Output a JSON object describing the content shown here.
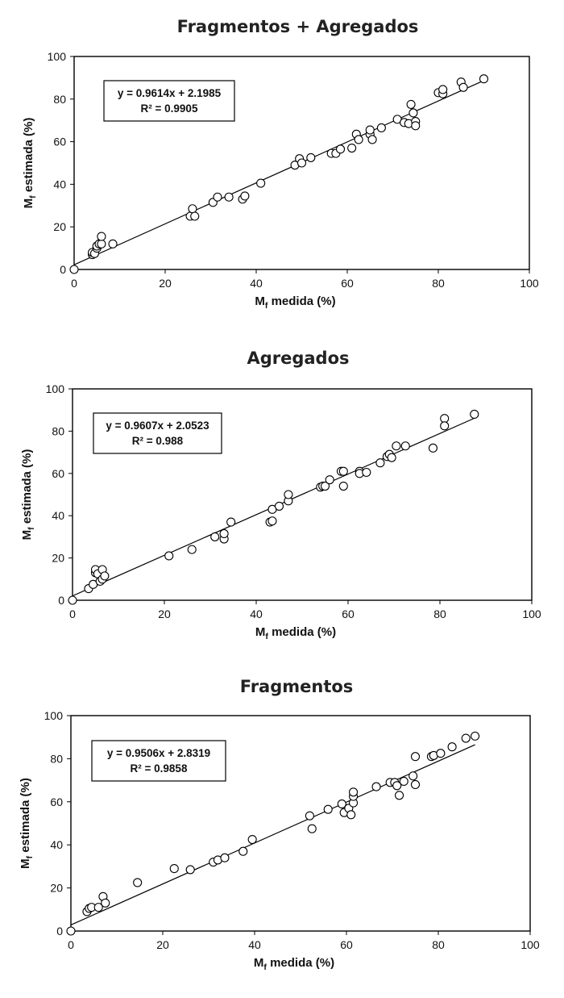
{
  "chart_data": [
    {
      "type": "scatter",
      "title": "Fragmentos + Agregados",
      "xlabel": "M",
      "xlabel_sub": "f",
      "xlabel_rest": " medida (%)",
      "ylabel": "M",
      "ylabel_sub": "f",
      "ylabel_rest": " estimada (%)",
      "xlim": [
        0,
        100
      ],
      "ylim": [
        0,
        100
      ],
      "x_ticks": [
        0,
        20,
        40,
        60,
        80,
        100
      ],
      "y_ticks": [
        0,
        20,
        40,
        60,
        80,
        100
      ],
      "equation": "y = 0.9614x + 2.1985",
      "r2": "R² = 0.9905",
      "fit": {
        "slope": 0.9614,
        "intercept": 2.1985,
        "x_range": [
          0,
          90
        ]
      },
      "points": [
        [
          0,
          0
        ],
        [
          4,
          7
        ],
        [
          4,
          8
        ],
        [
          4.5,
          7.5
        ],
        [
          5,
          10
        ],
        [
          5,
          11
        ],
        [
          5.5,
          12
        ],
        [
          6,
          12
        ],
        [
          6,
          15.5
        ],
        [
          8.5,
          12
        ],
        [
          25.5,
          25
        ],
        [
          26,
          28.5
        ],
        [
          26.5,
          25
        ],
        [
          30.5,
          31.5
        ],
        [
          31.5,
          34
        ],
        [
          34,
          34
        ],
        [
          37,
          33
        ],
        [
          37.5,
          34.5
        ],
        [
          41,
          40.5
        ],
        [
          48.5,
          49
        ],
        [
          49.5,
          52
        ],
        [
          50,
          50
        ],
        [
          52,
          52.5
        ],
        [
          56.5,
          54.5
        ],
        [
          57.5,
          54.5
        ],
        [
          58.5,
          56.5
        ],
        [
          61,
          57
        ],
        [
          62,
          63.5
        ],
        [
          62.5,
          61
        ],
        [
          65,
          63.5
        ],
        [
          65,
          65.5
        ],
        [
          65.5,
          61
        ],
        [
          67.5,
          66.5
        ],
        [
          71,
          70.5
        ],
        [
          72.5,
          69
        ],
        [
          73.5,
          68.5
        ],
        [
          74,
          77.5
        ],
        [
          74.5,
          73.5
        ],
        [
          75,
          69.5
        ],
        [
          75,
          67.5
        ],
        [
          80,
          83
        ],
        [
          81,
          82.5
        ],
        [
          81,
          84.5
        ],
        [
          85,
          88
        ],
        [
          85.5,
          85.5
        ],
        [
          90,
          89.5
        ]
      ]
    },
    {
      "type": "scatter",
      "title": "Agregados",
      "xlabel": "M",
      "xlabel_sub": "f",
      "xlabel_rest": " medida (%)",
      "ylabel": "M",
      "ylabel_sub": "f",
      "ylabel_rest": " estimada (%)",
      "xlim": [
        0,
        100
      ],
      "ylim": [
        0,
        100
      ],
      "x_ticks": [
        0,
        20,
        40,
        60,
        80,
        100
      ],
      "y_ticks": [
        0,
        20,
        40,
        60,
        80,
        100
      ],
      "equation": "y = 0.9607x + 2.0523",
      "r2": "R² = 0.988",
      "fit": {
        "slope": 0.9607,
        "intercept": 2.0523,
        "x_range": [
          0,
          88
        ]
      },
      "points": [
        [
          0,
          0
        ],
        [
          3.5,
          5.5
        ],
        [
          4.5,
          7.5
        ],
        [
          5,
          13
        ],
        [
          5,
          14.5
        ],
        [
          5.5,
          12.5
        ],
        [
          6,
          9
        ],
        [
          6.5,
          10
        ],
        [
          6.5,
          14.5
        ],
        [
          7,
          11.5
        ],
        [
          21,
          21
        ],
        [
          26,
          24
        ],
        [
          31,
          30
        ],
        [
          33,
          29
        ],
        [
          33,
          31.5
        ],
        [
          34.5,
          37
        ],
        [
          43,
          37
        ],
        [
          43.5,
          37.5
        ],
        [
          43.5,
          43
        ],
        [
          45,
          44.5
        ],
        [
          47,
          47
        ],
        [
          47,
          50
        ],
        [
          54,
          53.5
        ],
        [
          54.5,
          54
        ],
        [
          55,
          54
        ],
        [
          56,
          57
        ],
        [
          58.5,
          61
        ],
        [
          59,
          61
        ],
        [
          59,
          54
        ],
        [
          62.5,
          61
        ],
        [
          62.5,
          60
        ],
        [
          64,
          60.5
        ],
        [
          67,
          65
        ],
        [
          68.5,
          68
        ],
        [
          69,
          69
        ],
        [
          69.5,
          67.5
        ],
        [
          70.5,
          73
        ],
        [
          72.5,
          73
        ],
        [
          78.5,
          72
        ],
        [
          81,
          86
        ],
        [
          81,
          82.5
        ],
        [
          87.5,
          88
        ]
      ]
    },
    {
      "type": "scatter",
      "title": "Fragmentos",
      "xlabel": "M",
      "xlabel_sub": "f",
      "xlabel_rest": " medida (%)",
      "ylabel": "M",
      "ylabel_sub": "f",
      "ylabel_rest": " estimada (%)",
      "xlim": [
        0,
        100
      ],
      "ylim": [
        0,
        100
      ],
      "x_ticks": [
        0,
        20,
        40,
        60,
        80,
        100
      ],
      "y_ticks": [
        0,
        20,
        40,
        60,
        80,
        100
      ],
      "equation": "y = 0.9506x + 2.8319",
      "r2": "R² = 0.9858",
      "fit": {
        "slope": 0.9506,
        "intercept": 2.8319,
        "x_range": [
          0,
          88
        ]
      },
      "points": [
        [
          0,
          0
        ],
        [
          3.5,
          9
        ],
        [
          4,
          10.5
        ],
        [
          4.5,
          11
        ],
        [
          6,
          11
        ],
        [
          7,
          16
        ],
        [
          7.5,
          13
        ],
        [
          14.5,
          22.5
        ],
        [
          22.5,
          29
        ],
        [
          26,
          28.5
        ],
        [
          31,
          32
        ],
        [
          32,
          33
        ],
        [
          33.5,
          34
        ],
        [
          37.5,
          37
        ],
        [
          39.5,
          42.5
        ],
        [
          52,
          53.5
        ],
        [
          52.5,
          47.5
        ],
        [
          56,
          56.5
        ],
        [
          59,
          59
        ],
        [
          59.5,
          55
        ],
        [
          60.5,
          57
        ],
        [
          61,
          54
        ],
        [
          61.5,
          59.5
        ],
        [
          61.5,
          62.5
        ],
        [
          61.5,
          64.5
        ],
        [
          66.5,
          67
        ],
        [
          69.5,
          69
        ],
        [
          70.5,
          69
        ],
        [
          71,
          67.5
        ],
        [
          71.5,
          63
        ],
        [
          72.5,
          69.5
        ],
        [
          74.5,
          72
        ],
        [
          75,
          81
        ],
        [
          75,
          68
        ],
        [
          78.5,
          81
        ],
        [
          79,
          81.5
        ],
        [
          80.5,
          82.5
        ],
        [
          83,
          85.5
        ],
        [
          86,
          89.5
        ],
        [
          88,
          90.5
        ]
      ]
    }
  ]
}
